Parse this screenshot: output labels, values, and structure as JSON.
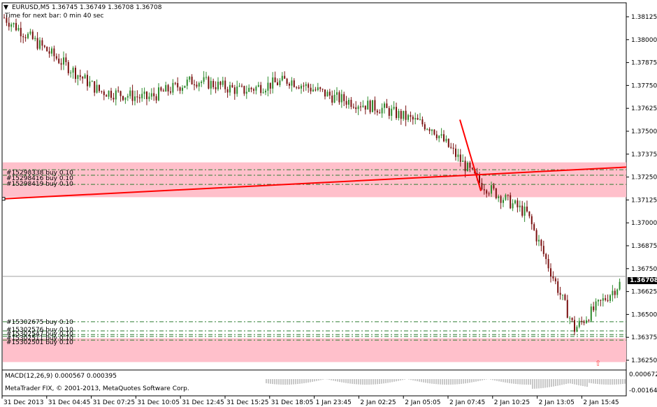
{
  "header": {
    "symbol_line": "EURUSD,M5  1.36745 1.36749 1.36708 1.36708",
    "next_bar": "Time for next bar: 0 min 40 sec"
  },
  "price_axis": {
    "labels": [
      "1.38125",
      "1.38000",
      "1.37875",
      "1.37750",
      "1.37625",
      "1.37500",
      "1.37375",
      "1.37250",
      "1.37125",
      "1.37000",
      "1.36875",
      "1.36750",
      "1.36625",
      "1.36500",
      "1.36375",
      "1.36250"
    ],
    "current_price": "1.36708"
  },
  "time_axis": {
    "labels": [
      "31 Dec 2013",
      "31 Dec 04:45",
      "31 Dec 07:25",
      "31 Dec 10:05",
      "31 Dec 12:45",
      "31 Dec 15:25",
      "31 Dec 18:05",
      "1 Jan 23:45",
      "2 Jan 02:25",
      "2 Jan 05:05",
      "2 Jan 07:45",
      "2 Jan 10:25",
      "2 Jan 13:05",
      "2 Jan 15:45"
    ]
  },
  "orders_upper": [
    "#15298338 buy 0.10",
    "#15298416 buy 0.10",
    "#15298419 buy 0.10"
  ],
  "orders_lower": [
    "#15302675 buy 0.10",
    "#15302576 buy 0.10",
    "#15302547 buy 0.10",
    "#15302511 buy 0.10",
    "#15302501 buy 0.10"
  ],
  "macd": {
    "label": "MACD(12,26,9) 0.000567 0.000395",
    "axis_top": "0.000672",
    "axis_bottom": "-0.001642",
    "copyright": "MetaTrader FIX, © 2001-2013, MetaQuotes Software Corp."
  },
  "colors": {
    "bull": "#2e8b2e",
    "bear": "#7a1010",
    "zone": "#ffc0cb",
    "trendline": "#ff0000",
    "order_line": "#2e7d32",
    "macd_hist": "#c8c8c8"
  },
  "chart_data": {
    "type": "candlestick",
    "symbol": "EURUSD",
    "timeframe": "M5",
    "ylim": [
      1.3625,
      1.3825
    ],
    "last_price": 1.36708,
    "price_path": [
      {
        "t": "31 Dec 2013",
        "p": 1.3812
      },
      {
        "t": "31 Dec 04:45",
        "p": 1.3792
      },
      {
        "t": "31 Dec 07:25",
        "p": 1.3772
      },
      {
        "t": "31 Dec 10:05",
        "p": 1.3768
      },
      {
        "t": "31 Dec 12:45",
        "p": 1.3778
      },
      {
        "t": "31 Dec 15:25",
        "p": 1.3772
      },
      {
        "t": "31 Dec 18:05",
        "p": 1.3778
      },
      {
        "t": "1 Jan 23:45",
        "p": 1.3768
      },
      {
        "t": "2 Jan 02:25",
        "p": 1.3762
      },
      {
        "t": "2 Jan 05:05",
        "p": 1.3752
      },
      {
        "t": "2 Jan 07:45",
        "p": 1.3722
      },
      {
        "t": "2 Jan 10:25",
        "p": 1.3705
      },
      {
        "t": "2 Jan 13:05",
        "p": 1.3642
      },
      {
        "t": "2 Jan 15:45",
        "p": 1.3668
      }
    ],
    "order_levels_upper": [
      1.3729,
      1.3726,
      1.3721
    ],
    "order_levels_lower": [
      1.3646,
      1.3641,
      1.3639,
      1.3638,
      1.3636
    ],
    "zones": [
      [
        1.3714,
        1.3733
      ],
      [
        1.3624,
        1.3637
      ]
    ]
  }
}
